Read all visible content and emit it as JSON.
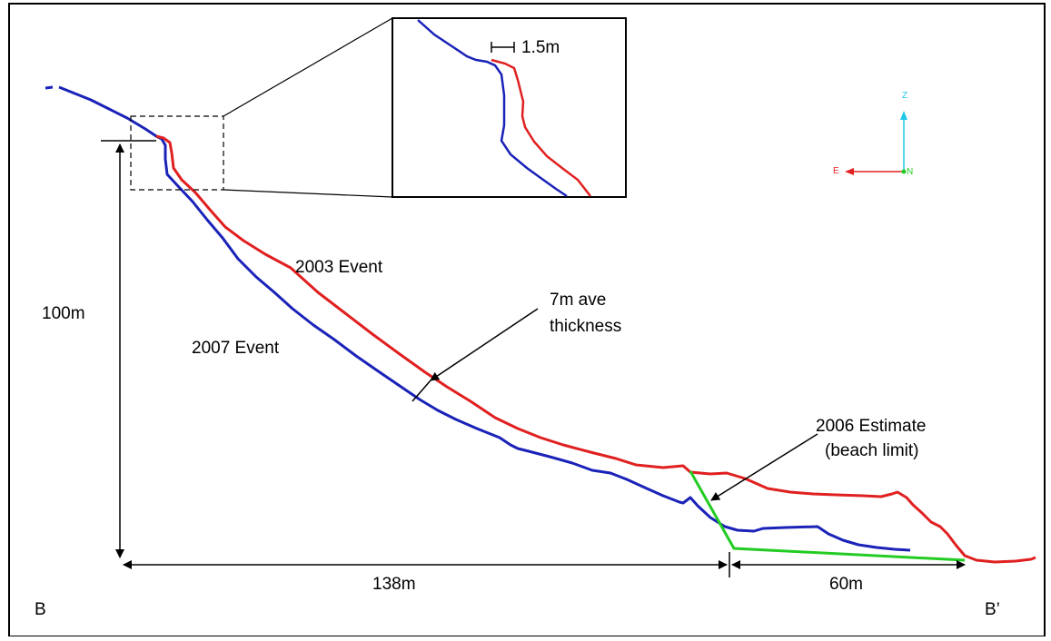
{
  "labels": {
    "event_2003": "2003 Event",
    "event_2007": "2007 Event",
    "thickness_line1": "7m ave",
    "thickness_line2": "thickness",
    "estimate_line1": "2006 Estimate",
    "estimate_line2": "(beach limit)",
    "height": "100m",
    "width_main": "138m",
    "width_beach": "60m",
    "offset": "1.5m",
    "section_start": "B",
    "section_end": "B’"
  },
  "axes_widget": {
    "z": "Z",
    "e": "E",
    "n": "N"
  },
  "colors": {
    "event_2003": "#e02020",
    "event_2007": "#1a22b8",
    "estimate_2006": "#22cc22",
    "axis_z": "#22c8e8",
    "axis_e": "#e02020",
    "axis_n": "#22cc22"
  }
}
